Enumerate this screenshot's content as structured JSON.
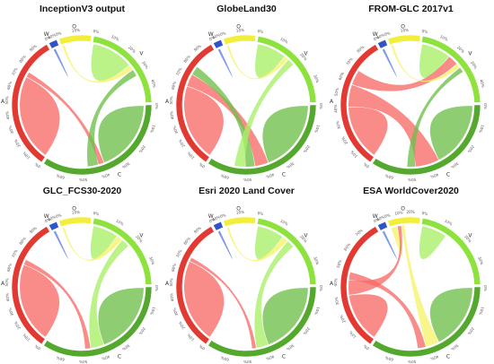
{
  "figure": {
    "panels": [
      {
        "title": "InceptionV3 output",
        "ticks": {
          "A": [
            "0%",
            "10%",
            "20%",
            "30%",
            "40%",
            "50%",
            "60%",
            "70%",
            "80%",
            "90%"
          ],
          "C": [
            "0%",
            "10%",
            "20%",
            "30%",
            "40%",
            "50%",
            "60%"
          ],
          "V": [
            "0%",
            "10%",
            "20%",
            "30%",
            "40%"
          ],
          "O": [
            "0%",
            "10%"
          ],
          "W": [
            "0%",
            "40%"
          ]
        },
        "flows": [
          {
            "from": "A",
            "to": "A",
            "w": 0.7
          },
          {
            "from": "V",
            "to": "V",
            "w": 0.5
          },
          {
            "from": "C",
            "to": "C",
            "w": 0.55
          },
          {
            "from": "O",
            "to": "V",
            "w": 0.06
          },
          {
            "from": "A",
            "to": "C",
            "w": 0.04
          },
          {
            "from": "C",
            "to": "V",
            "w": 0.08
          },
          {
            "from": "W",
            "to": "W",
            "w": 0.03
          }
        ]
      },
      {
        "title": "GlobeLand30",
        "ticks": {
          "A": [
            "0%",
            "10%",
            "20%",
            "30%",
            "40%",
            "50%",
            "60%",
            "70%",
            "80%",
            "90%"
          ],
          "C": [
            "0%",
            "10%",
            "20%",
            "30%",
            "40%",
            "50%",
            "60%"
          ],
          "V": [
            "0%",
            "10%",
            "20%",
            "30%"
          ],
          "O": [
            "0%",
            "10%"
          ],
          "W": [
            "0%",
            "40%"
          ]
        },
        "flows": [
          {
            "from": "A",
            "to": "A",
            "w": 0.62
          },
          {
            "from": "V",
            "to": "V",
            "w": 0.35
          },
          {
            "from": "C",
            "to": "C",
            "w": 0.55
          },
          {
            "from": "A",
            "to": "C",
            "w": 0.1
          },
          {
            "from": "C",
            "to": "A",
            "w": 0.07
          },
          {
            "from": "O",
            "to": "V",
            "w": 0.05
          },
          {
            "from": "V",
            "to": "C",
            "w": 0.08
          },
          {
            "from": "W",
            "to": "W",
            "w": 0.03
          }
        ]
      },
      {
        "title": "FROM-GLC 2017v1",
        "ticks": {
          "A": [
            "0%",
            "10%",
            "20%",
            "30%",
            "40%",
            "50%",
            "60%",
            "70%",
            "80%"
          ],
          "C": [
            "0%",
            "10%",
            "20%",
            "30%",
            "40%",
            "50%",
            "60%"
          ],
          "V": [
            "0%",
            "10%",
            "20%",
            "30%",
            "40%"
          ],
          "O": [
            "0%",
            "10%"
          ],
          "W": [
            "0%",
            "40%"
          ]
        },
        "flows": [
          {
            "from": "A",
            "to": "A",
            "w": 0.45
          },
          {
            "from": "V",
            "to": "V",
            "w": 0.35
          },
          {
            "from": "C",
            "to": "C",
            "w": 0.5
          },
          {
            "from": "A",
            "to": "C",
            "w": 0.18
          },
          {
            "from": "A",
            "to": "V",
            "w": 0.12
          },
          {
            "from": "O",
            "to": "V",
            "w": 0.05
          },
          {
            "from": "C",
            "to": "V",
            "w": 0.06
          },
          {
            "from": "W",
            "to": "W",
            "w": 0.03
          }
        ]
      },
      {
        "title": "GLC_FCS30-2020",
        "ticks": {
          "A": [
            "0%",
            "10%",
            "20%",
            "30%",
            "40%",
            "50%",
            "60%",
            "70%",
            "80%",
            "90%"
          ],
          "C": [
            "0%",
            "10%",
            "20%",
            "30%",
            "40%",
            "50%",
            "60%"
          ],
          "V": [
            "0%",
            "10%",
            "20%",
            "30%"
          ],
          "O": [
            "0%",
            "10%"
          ],
          "W": [
            "0%",
            "40%"
          ]
        },
        "flows": [
          {
            "from": "A",
            "to": "A",
            "w": 0.65
          },
          {
            "from": "V",
            "to": "V",
            "w": 0.3
          },
          {
            "from": "C",
            "to": "C",
            "w": 0.55
          },
          {
            "from": "O",
            "to": "V",
            "w": 0.07
          },
          {
            "from": "V",
            "to": "C",
            "w": 0.1
          },
          {
            "from": "A",
            "to": "C",
            "w": 0.04
          },
          {
            "from": "W",
            "to": "W",
            "w": 0.03
          }
        ]
      },
      {
        "title": "Esri 2020 Land Cover",
        "ticks": {
          "A": [
            "0%",
            "10%",
            "20%",
            "30%",
            "40%",
            "50%",
            "60%",
            "70%",
            "80%",
            "90%"
          ],
          "C": [
            "0%",
            "10%",
            "20%",
            "30%",
            "40%",
            "50%",
            "60%"
          ],
          "V": [
            "0%",
            "10%",
            "20%",
            "30%"
          ],
          "O": [
            "0%",
            "10%"
          ],
          "W": [
            "0%",
            "40%"
          ]
        },
        "flows": [
          {
            "from": "A",
            "to": "A",
            "w": 0.68
          },
          {
            "from": "V",
            "to": "V",
            "w": 0.32
          },
          {
            "from": "C",
            "to": "C",
            "w": 0.55
          },
          {
            "from": "O",
            "to": "V",
            "w": 0.07
          },
          {
            "from": "V",
            "to": "C",
            "w": 0.09
          },
          {
            "from": "A",
            "to": "C",
            "w": 0.03
          },
          {
            "from": "W",
            "to": "W",
            "w": 0.03
          }
        ]
      },
      {
        "title": "ESA WorldCover2020",
        "ticks": {
          "A": [
            "0%",
            "10%",
            "20%",
            "30%",
            "40%",
            "50%",
            "60%",
            "70%"
          ],
          "C": [
            "0%",
            "10%",
            "20%",
            "30%",
            "40%",
            "50%",
            "60%"
          ],
          "V": [
            "0%",
            "10%",
            "20%",
            "30%"
          ],
          "O": [
            "0%",
            "10%",
            "20%"
          ],
          "W": [
            "0%",
            "40%"
          ]
        },
        "flows": [
          {
            "from": "A",
            "to": "A",
            "w": 0.4
          },
          {
            "from": "O",
            "to": "O",
            "w": 0.2
          },
          {
            "from": "C",
            "to": "C",
            "w": 0.5
          },
          {
            "from": "V",
            "to": "V",
            "w": 0.3
          },
          {
            "from": "A",
            "to": "O",
            "w": 0.12
          },
          {
            "from": "O",
            "to": "C",
            "w": 0.1
          },
          {
            "from": "A",
            "to": "C",
            "w": 0.06
          },
          {
            "from": "W",
            "to": "W",
            "w": 0.03
          }
        ]
      }
    ],
    "segments": [
      {
        "key": "A",
        "label": "A",
        "color": "#e23a32",
        "light": "#f76a66"
      },
      {
        "key": "W",
        "label": "W",
        "color": "#2f55c7",
        "light": "#5b7de0"
      },
      {
        "key": "O",
        "label": "O",
        "color": "#f2ee3a",
        "light": "#f6f36a"
      },
      {
        "key": "V",
        "label": "V",
        "color": "#8ee23e",
        "light": "#a8f068"
      },
      {
        "key": "C",
        "label": "C",
        "color": "#54a82e",
        "light": "#6fbf4a"
      }
    ]
  }
}
